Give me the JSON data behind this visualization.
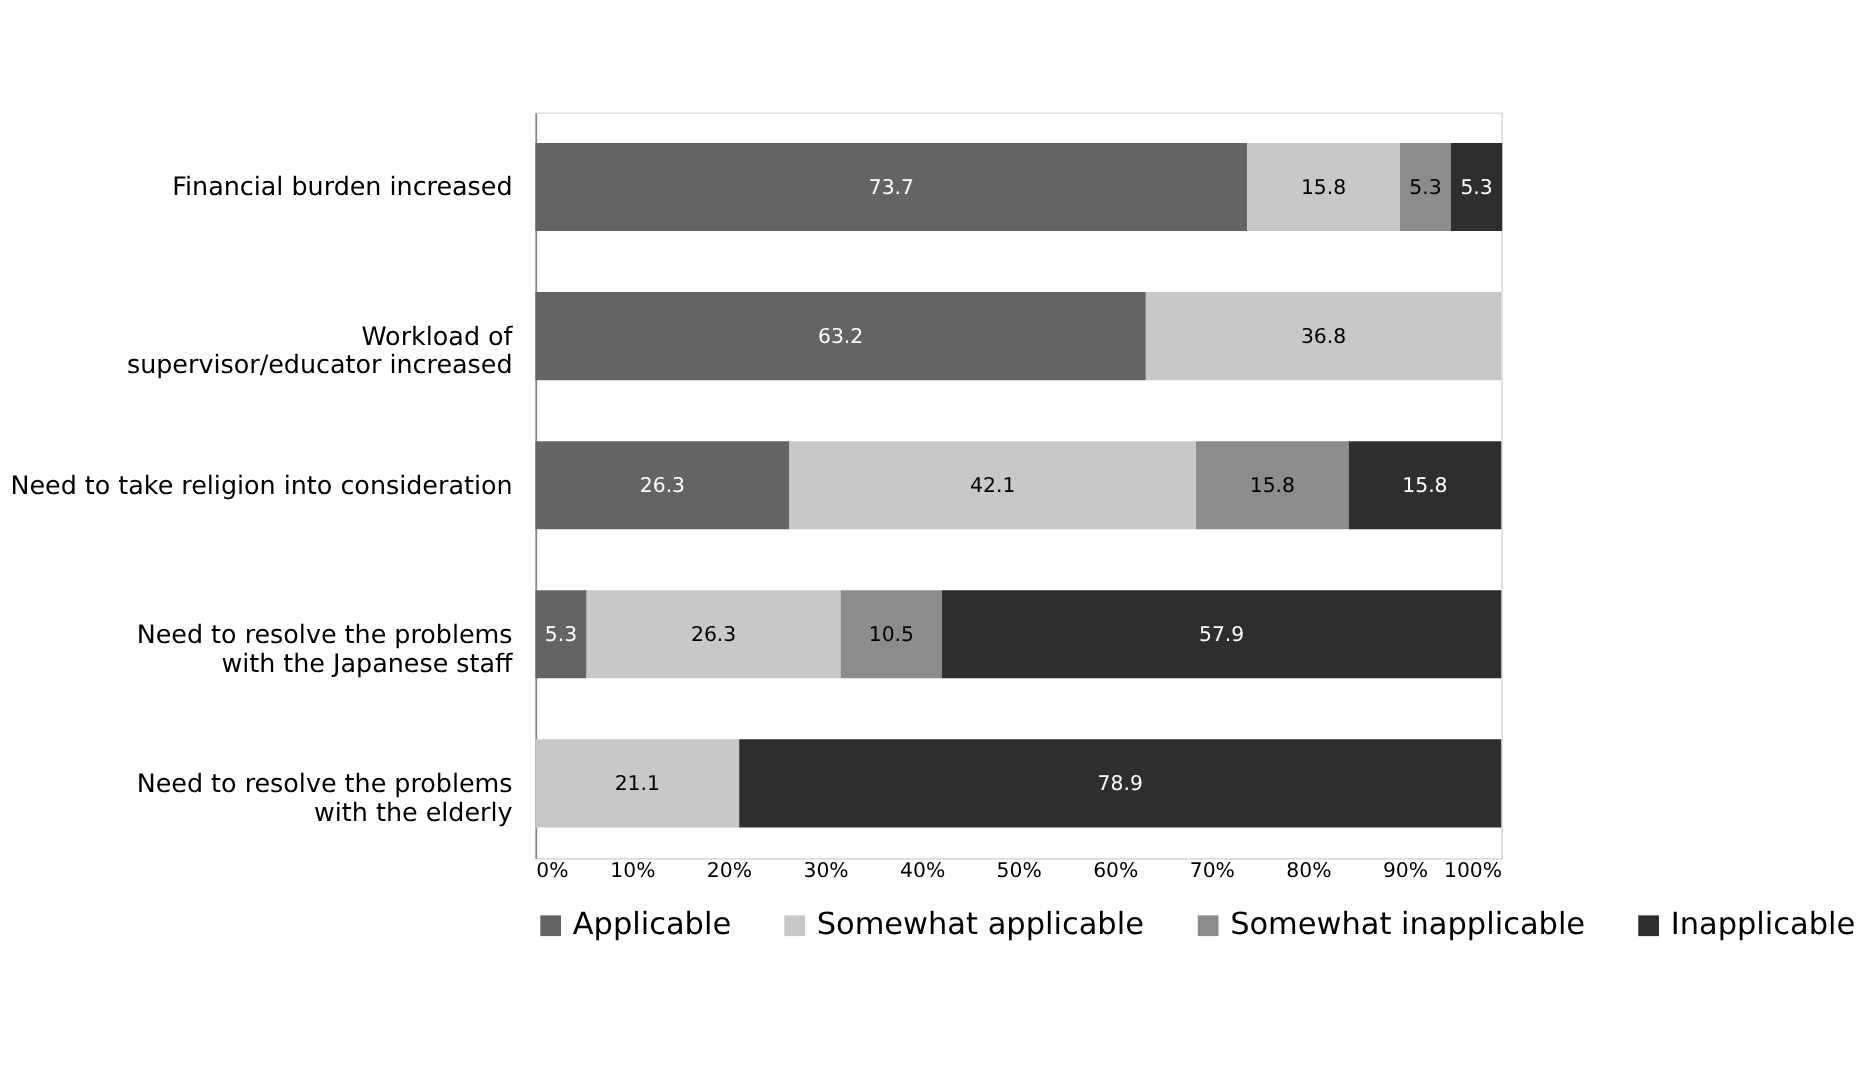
{
  "chart_data": {
    "type": "bar",
    "orientation": "horizontal",
    "stacked": true,
    "data_labels": true,
    "grid": false,
    "legend": "bottom",
    "categories": [
      "Financial burden increased",
      "Workload of\nsupervisor/educator increased",
      "Need to take religion into consideration",
      "Need to resolve the problems\nwith the Japanese staff",
      "Need to resolve the problems\nwith the elderly"
    ],
    "series": [
      {
        "name": "Applicable",
        "color": "#646464",
        "values": [
          73.7,
          63.2,
          26.3,
          5.3,
          null
        ]
      },
      {
        "name": "Somewhat applicable",
        "color": "#c8c8c8",
        "values": [
          15.8,
          36.8,
          42.1,
          26.3,
          21.1
        ]
      },
      {
        "name": "Somewhat inapplicable",
        "color": "#8c8c8c",
        "values": [
          5.3,
          null,
          15.8,
          10.5,
          null
        ]
      },
      {
        "name": "Inapplicable",
        "color": "#2e2e2e",
        "values": [
          5.3,
          null,
          15.8,
          57.9,
          78.9
        ]
      }
    ],
    "xlim": [
      0,
      100
    ],
    "xticks": [
      {
        "value": 0,
        "label": "0%"
      },
      {
        "value": 10,
        "label": "10%"
      },
      {
        "value": 20,
        "label": "20%"
      },
      {
        "value": 30,
        "label": "30%"
      },
      {
        "value": 40,
        "label": "40%"
      },
      {
        "value": 50,
        "label": "50%"
      },
      {
        "value": 60,
        "label": "60%"
      },
      {
        "value": 70,
        "label": "70%"
      },
      {
        "value": 80,
        "label": "80%"
      },
      {
        "value": 90,
        "label": "90%"
      },
      {
        "value": 100,
        "label": "100%"
      }
    ]
  }
}
